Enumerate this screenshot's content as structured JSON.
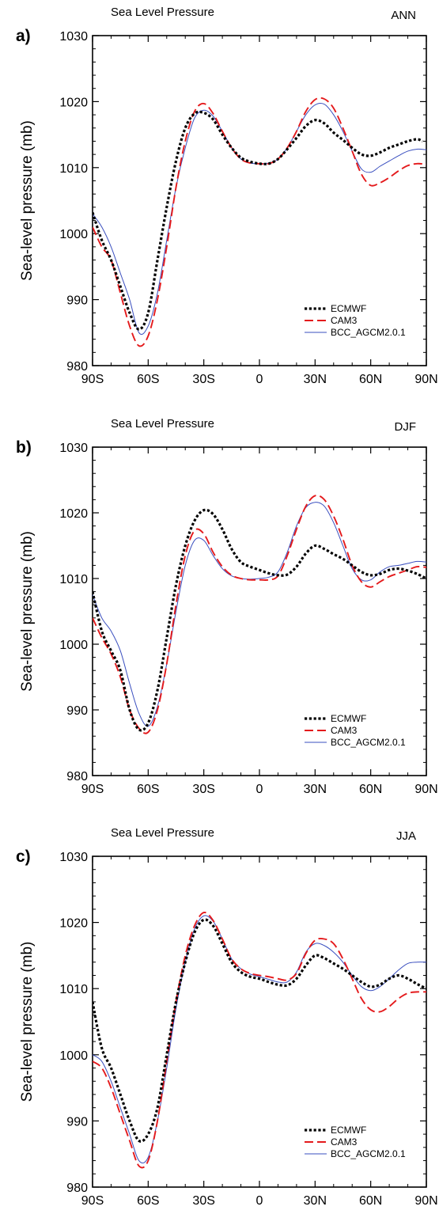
{
  "chart_data": [
    {
      "type": "line",
      "panel_label": "a)",
      "title": "Sea Level Pressure",
      "season": "ANN",
      "ylabel": "Sea-level pressure (mb)",
      "xlabel": "",
      "xlim": [
        -90,
        90
      ],
      "ylim": [
        980,
        1030
      ],
      "x_ticks": [
        -90,
        -60,
        -30,
        0,
        30,
        60,
        90
      ],
      "x_tick_labels": [
        "90S",
        "60S",
        "30S",
        "0",
        "30N",
        "60N",
        "90N"
      ],
      "y_ticks": [
        980,
        990,
        1000,
        1010,
        1020,
        1030
      ],
      "y_tick_labels": [
        "980",
        "990",
        "1000",
        "1010",
        "1020",
        "1030"
      ],
      "legend_position": "bottom-right",
      "series": [
        {
          "name": "ECMWF",
          "color": "#000000",
          "style": "dotted",
          "x": [
            -90,
            -85,
            -80,
            -75,
            -70,
            -65,
            -60,
            -55,
            -50,
            -45,
            -40,
            -35,
            -30,
            -25,
            -20,
            -15,
            -10,
            -5,
            0,
            5,
            10,
            15,
            20,
            25,
            30,
            35,
            40,
            45,
            50,
            55,
            60,
            65,
            70,
            75,
            80,
            85,
            88
          ],
          "y": [
            1003.2,
            999,
            996,
            992,
            988,
            985.5,
            988,
            996,
            1004,
            1011,
            1016,
            1018.2,
            1018.3,
            1017.3,
            1015,
            1013,
            1011.5,
            1010.9,
            1010.6,
            1010.6,
            1011.3,
            1012.8,
            1014.5,
            1016.3,
            1017.2,
            1016.7,
            1015.3,
            1014.2,
            1013,
            1012,
            1011.8,
            1012.3,
            1013,
            1013.5,
            1014,
            1014.3,
            1014
          ]
        },
        {
          "name": "CAM3",
          "color": "#e41a1c",
          "style": "dashed",
          "x": [
            -90,
            -85,
            -80,
            -75,
            -70,
            -65,
            -60,
            -55,
            -50,
            -45,
            -40,
            -35,
            -30,
            -25,
            -20,
            -15,
            -10,
            -5,
            0,
            5,
            10,
            15,
            20,
            25,
            30,
            35,
            40,
            45,
            50,
            55,
            60,
            65,
            70,
            75,
            80,
            85,
            90
          ],
          "y": [
            1001,
            998,
            996,
            991,
            986,
            983,
            984.5,
            990,
            998,
            1007,
            1014,
            1018.5,
            1019.7,
            1018.2,
            1015.5,
            1013,
            1011.3,
            1010.7,
            1010.6,
            1010.6,
            1011.3,
            1013,
            1015.5,
            1018.5,
            1020.3,
            1020.4,
            1019,
            1016,
            1012.5,
            1009,
            1007.3,
            1007.7,
            1008.5,
            1009.5,
            1010.3,
            1010.6,
            1010.5
          ]
        },
        {
          "name": "BCC_AGCM2.0.1",
          "color": "#3a4fbf",
          "style": "solid",
          "x": [
            -90,
            -85,
            -80,
            -75,
            -70,
            -65,
            -60,
            -55,
            -50,
            -45,
            -40,
            -35,
            -30,
            -25,
            -20,
            -15,
            -10,
            -5,
            0,
            5,
            10,
            15,
            20,
            25,
            30,
            35,
            40,
            45,
            50,
            55,
            60,
            65,
            70,
            75,
            80,
            85,
            90
          ],
          "y": [
            1003,
            1001,
            998,
            994,
            990,
            985,
            986,
            991,
            999,
            1007,
            1013,
            1017.5,
            1018.7,
            1017.8,
            1015.5,
            1013,
            1011.3,
            1010.7,
            1010.6,
            1010.7,
            1011.3,
            1013,
            1015.5,
            1018,
            1019.5,
            1019.6,
            1018,
            1015.5,
            1012.5,
            1009.8,
            1009.3,
            1010.2,
            1011,
            1011.8,
            1012.5,
            1012.8,
            1012.7
          ]
        }
      ]
    },
    {
      "type": "line",
      "panel_label": "b)",
      "title": "Sea Level Pressure",
      "season": "DJF",
      "ylabel": "Sea-level pressure (mb)",
      "xlabel": "",
      "xlim": [
        -90,
        90
      ],
      "ylim": [
        980,
        1030
      ],
      "x_ticks": [
        -90,
        -60,
        -30,
        0,
        30,
        60,
        90
      ],
      "x_tick_labels": [
        "90S",
        "60S",
        "30S",
        "0",
        "30N",
        "60N",
        "90N"
      ],
      "y_ticks": [
        980,
        990,
        1000,
        1010,
        1020,
        1030
      ],
      "y_tick_labels": [
        "980",
        "990",
        "1000",
        "1010",
        "1020",
        "1030"
      ],
      "legend_position": "bottom-right",
      "series": [
        {
          "name": "ECMWF",
          "color": "#000000",
          "style": "dotted",
          "x": [
            -90,
            -85,
            -80,
            -75,
            -70,
            -65,
            -60,
            -55,
            -50,
            -45,
            -40,
            -35,
            -30,
            -25,
            -20,
            -15,
            -10,
            -5,
            0,
            5,
            10,
            15,
            20,
            25,
            30,
            35,
            40,
            45,
            50,
            55,
            60,
            65,
            70,
            75,
            80,
            85,
            90
          ],
          "y": [
            1008,
            1002,
            999,
            996,
            990,
            987,
            988,
            993,
            1001,
            1009,
            1015,
            1018.8,
            1020.4,
            1019.8,
            1017.5,
            1014.5,
            1012.5,
            1011.8,
            1011.3,
            1010.8,
            1010.5,
            1010.6,
            1011.8,
            1013.8,
            1015,
            1014.5,
            1013.7,
            1013,
            1012,
            1011,
            1010.5,
            1010.7,
            1011.3,
            1011.5,
            1011.2,
            1010.7,
            1010
          ]
        },
        {
          "name": "CAM3",
          "color": "#e41a1c",
          "style": "dashed",
          "x": [
            -90,
            -85,
            -80,
            -75,
            -70,
            -65,
            -60,
            -55,
            -50,
            -45,
            -40,
            -35,
            -30,
            -25,
            -20,
            -15,
            -10,
            -5,
            0,
            5,
            10,
            15,
            20,
            25,
            30,
            35,
            40,
            45,
            50,
            55,
            60,
            65,
            70,
            75,
            80,
            85,
            90
          ],
          "y": [
            1004,
            1001,
            998.5,
            995,
            990,
            987.2,
            986.6,
            990,
            997,
            1006,
            1013.5,
            1017.3,
            1016.8,
            1014,
            1011.8,
            1010.5,
            1010,
            1009.8,
            1009.8,
            1009.8,
            1010.4,
            1013.5,
            1017.5,
            1021,
            1022.6,
            1022,
            1019.5,
            1016,
            1012,
            1009.5,
            1008.7,
            1009.5,
            1010.3,
            1010.8,
            1011.3,
            1011.8,
            1011.7
          ]
        },
        {
          "name": "BCC_AGCM2.0.1",
          "color": "#3a4fbf",
          "style": "solid",
          "x": [
            -90,
            -85,
            -80,
            -75,
            -70,
            -65,
            -60,
            -55,
            -50,
            -45,
            -40,
            -35,
            -30,
            -25,
            -20,
            -15,
            -10,
            -5,
            0,
            5,
            10,
            15,
            20,
            25,
            30,
            35,
            40,
            45,
            50,
            55,
            60,
            65,
            70,
            75,
            80,
            85,
            90
          ],
          "y": [
            1007.5,
            1004,
            1002,
            999,
            994,
            989.5,
            987.5,
            990.5,
            997,
            1005,
            1012,
            1015.8,
            1015.8,
            1013.5,
            1011.5,
            1010.4,
            1010,
            1009.9,
            1010,
            1010.2,
            1011,
            1014,
            1018,
            1020.8,
            1021.6,
            1021,
            1018.5,
            1015,
            1011.5,
            1009.8,
            1009.8,
            1011,
            1011.8,
            1012,
            1012.3,
            1012.6,
            1012.5
          ]
        }
      ]
    },
    {
      "type": "line",
      "panel_label": "c)",
      "title": "Sea Level Pressure",
      "season": "JJA",
      "ylabel": "Sea-level pressure (mb)",
      "xlabel": "",
      "xlim": [
        -90,
        90
      ],
      "ylim": [
        980,
        1030
      ],
      "x_ticks": [
        -90,
        -60,
        -30,
        0,
        30,
        60,
        90
      ],
      "x_tick_labels": [
        "90S",
        "60S",
        "30S",
        "0",
        "30N",
        "60N",
        "90N"
      ],
      "y_ticks": [
        980,
        990,
        1000,
        1010,
        1020,
        1030
      ],
      "y_tick_labels": [
        "980",
        "990",
        "1000",
        "1010",
        "1020",
        "1030"
      ],
      "legend_position": "bottom-right",
      "series": [
        {
          "name": "ECMWF",
          "color": "#000000",
          "style": "dotted",
          "x": [
            -90,
            -85,
            -80,
            -75,
            -70,
            -65,
            -60,
            -55,
            -50,
            -45,
            -40,
            -35,
            -30,
            -25,
            -20,
            -15,
            -10,
            -5,
            0,
            5,
            10,
            15,
            20,
            25,
            30,
            35,
            40,
            45,
            50,
            55,
            60,
            65,
            70,
            75,
            80,
            85,
            90
          ],
          "y": [
            1008,
            1001,
            998,
            994,
            990,
            987,
            988,
            992,
            1000,
            1008,
            1014,
            1018.5,
            1020.4,
            1019.5,
            1016.8,
            1014,
            1012.5,
            1011.8,
            1011.5,
            1011,
            1010.6,
            1010.5,
            1011.5,
            1013.5,
            1015,
            1014.6,
            1013.8,
            1013,
            1012,
            1011,
            1010.3,
            1010.6,
            1011.5,
            1012,
            1011.5,
            1010.7,
            1010
          ]
        },
        {
          "name": "CAM3",
          "color": "#e41a1c",
          "style": "dashed",
          "x": [
            -90,
            -85,
            -80,
            -75,
            -70,
            -65,
            -60,
            -55,
            -50,
            -45,
            -40,
            -35,
            -30,
            -25,
            -20,
            -15,
            -10,
            -5,
            0,
            5,
            10,
            15,
            20,
            25,
            30,
            35,
            40,
            45,
            50,
            55,
            60,
            65,
            70,
            75,
            80,
            85,
            90
          ],
          "y": [
            999,
            998,
            995,
            991,
            987,
            983.2,
            984,
            990,
            999,
            1008,
            1015,
            1019.5,
            1021.5,
            1020.3,
            1017.5,
            1014.5,
            1013,
            1012.3,
            1012,
            1011.8,
            1011.5,
            1011.3,
            1012.3,
            1015.3,
            1017.3,
            1017.5,
            1016.8,
            1014.5,
            1011.5,
            1008.5,
            1006.8,
            1006.5,
            1007.3,
            1008.5,
            1009.3,
            1009.5,
            1009.5
          ]
        },
        {
          "name": "BCC_AGCM2.0.1",
          "color": "#3a4fbf",
          "style": "solid",
          "x": [
            -90,
            -85,
            -80,
            -75,
            -70,
            -65,
            -60,
            -55,
            -50,
            -45,
            -40,
            -35,
            -30,
            -25,
            -20,
            -15,
            -10,
            -5,
            0,
            5,
            10,
            15,
            20,
            25,
            30,
            35,
            40,
            45,
            50,
            55,
            60,
            65,
            70,
            75,
            80,
            85,
            90
          ],
          "y": [
            1000,
            999,
            996,
            992,
            988,
            984,
            984.5,
            990,
            998,
            1007,
            1014,
            1019,
            1021,
            1020.2,
            1017.5,
            1014.5,
            1013,
            1012.2,
            1011.8,
            1011.4,
            1011,
            1011,
            1012.5,
            1015.5,
            1016.8,
            1016.5,
            1015.5,
            1014,
            1012,
            1010.3,
            1009.7,
            1010.3,
            1011.5,
            1012.8,
            1013.8,
            1014,
            1014
          ]
        }
      ]
    }
  ]
}
